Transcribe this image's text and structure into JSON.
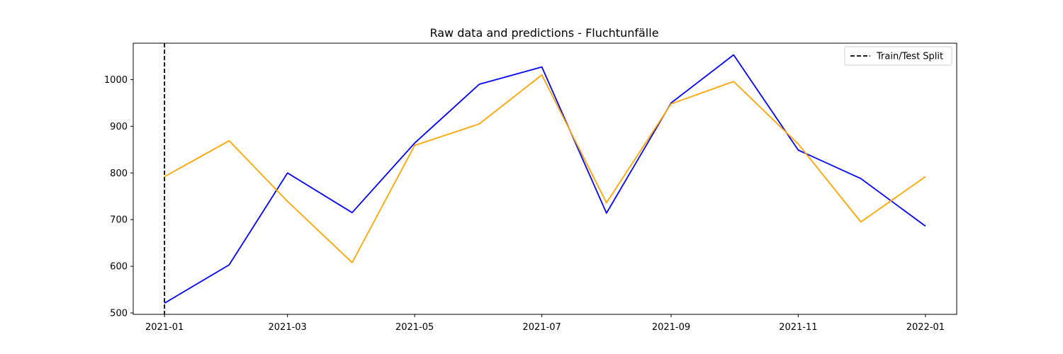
{
  "chart_data": {
    "type": "line",
    "title": "Raw data and predictions - Fluchtunfälle",
    "xlabel": "",
    "ylabel": "",
    "x": [
      "2021-01",
      "2021-02",
      "2021-03",
      "2021-04",
      "2021-05",
      "2021-06",
      "2021-07",
      "2021-08",
      "2021-09",
      "2021-10",
      "2021-11",
      "2021-12",
      "2022-01"
    ],
    "x_ticks": [
      "2021-01",
      "2021-03",
      "2021-05",
      "2021-07",
      "2021-09",
      "2021-11",
      "2022-01"
    ],
    "y_ticks": [
      500,
      600,
      700,
      800,
      900,
      1000
    ],
    "xlim": [
      "2020-12-17",
      "2022-01-16"
    ],
    "ylim": [
      497,
      1078
    ],
    "series": [
      {
        "values": [
          521,
          603,
          800,
          715,
          864,
          990,
          1027,
          714,
          950,
          1053,
          849,
          788,
          686
        ],
        "color": "#0000ff"
      },
      {
        "values": [
          792,
          869,
          739,
          608,
          859,
          905,
          1010,
          736,
          948,
          996,
          862,
          695,
          792
        ],
        "color": "#ffa500"
      }
    ],
    "vline": {
      "x": "2021-01",
      "label": "Train/Test Split",
      "color": "#000000",
      "style": "dashed"
    },
    "legend": {
      "position": "top-right",
      "entries": [
        "Train/Test Split"
      ]
    },
    "grid": false
  }
}
